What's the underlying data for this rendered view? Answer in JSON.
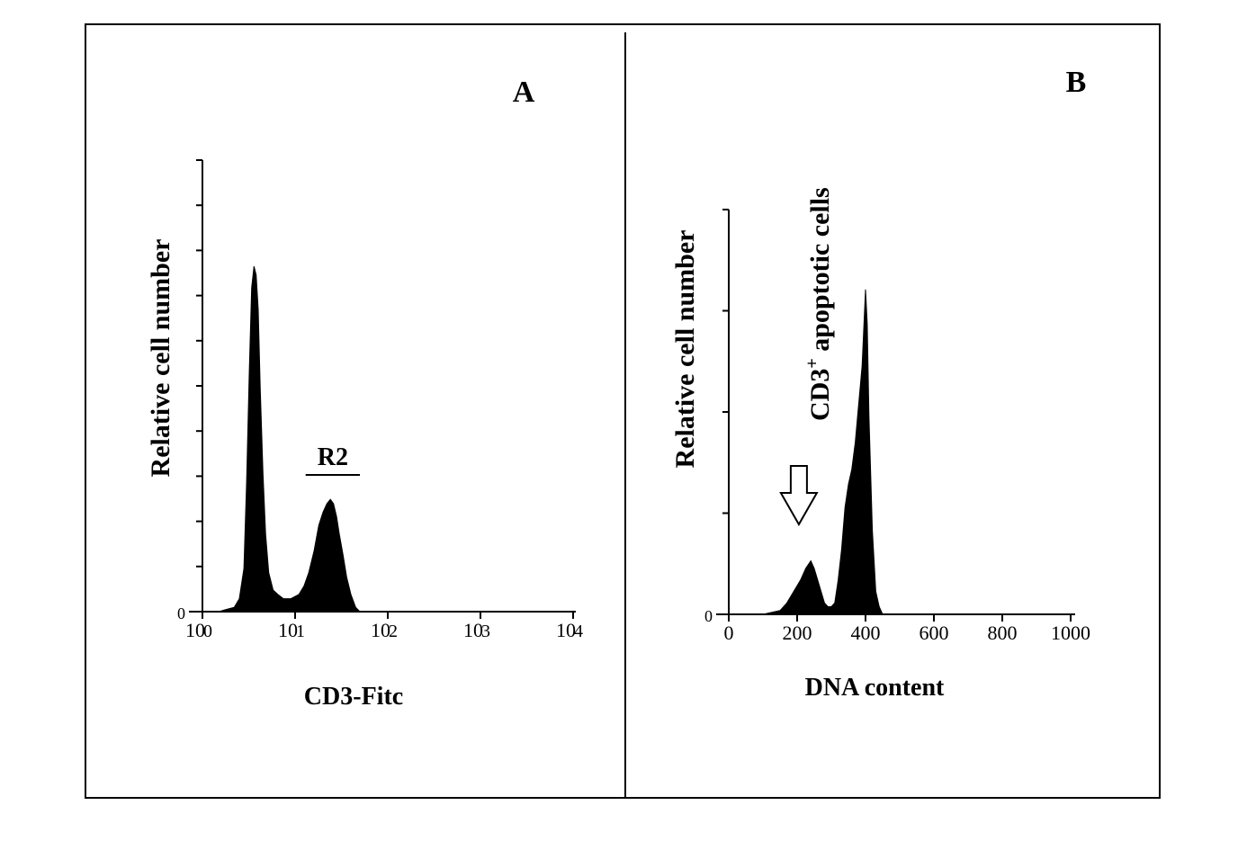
{
  "chart_data": [
    {
      "type": "area",
      "panel_label": "A",
      "xlabel": "CD3-Fitc",
      "ylabel": "Relative cell number",
      "x_scale": "log",
      "xlim": [
        1,
        10000
      ],
      "x_ticks": [
        {
          "value": 1,
          "label": "10",
          "exp": "0"
        },
        {
          "value": 10,
          "label": "10",
          "exp": "1"
        },
        {
          "value": 100,
          "label": "10",
          "exp": "2"
        },
        {
          "value": 1000,
          "label": "10",
          "exp": "3"
        },
        {
          "value": 10000,
          "label": "10",
          "exp": "4"
        }
      ],
      "y_zero_label": "0",
      "ylim": [
        0,
        100
      ],
      "gate": {
        "label": "R2",
        "x_range": [
          13,
          50
        ]
      },
      "series": [
        {
          "x": [
            1.5,
            1.8,
            2.2,
            2.5,
            2.8,
            3.0,
            3.2,
            3.4,
            3.6,
            3.8,
            4.0,
            4.2,
            4.5,
            4.8,
            5.2,
            5.8,
            6.5,
            7.5,
            9,
            11,
            12.5,
            14,
            16,
            18,
            20,
            22,
            24,
            26,
            28,
            30,
            33,
            36,
            40,
            45,
            50,
            60,
            100,
            1000,
            10000
          ],
          "y": [
            0,
            0.5,
            1,
            3,
            10,
            30,
            55,
            75,
            80,
            78,
            70,
            52,
            32,
            18,
            9,
            5,
            4,
            3,
            3,
            4,
            6,
            9,
            14,
            20,
            23,
            25,
            26,
            25,
            22,
            18,
            13,
            8,
            4,
            1,
            0,
            0,
            0,
            0,
            0
          ]
        }
      ]
    },
    {
      "type": "area",
      "panel_label": "B",
      "xlabel": "DNA content",
      "ylabel": "Relative cell number",
      "x_scale": "linear",
      "xlim": [
        0,
        1000
      ],
      "x_ticks": [
        {
          "value": 0,
          "label": "0"
        },
        {
          "value": 200,
          "label": "200"
        },
        {
          "value": 400,
          "label": "400"
        },
        {
          "value": 600,
          "label": "600"
        },
        {
          "value": 800,
          "label": "800"
        },
        {
          "value": 1000,
          "label": "1000"
        }
      ],
      "y_zero_label": "0",
      "ylim": [
        0,
        100
      ],
      "annotation": {
        "text": "CD3",
        "superscript": "+",
        "text_suffix": "apoptotic cells",
        "arrow_x": 205
      },
      "series": [
        {
          "x": [
            0,
            100,
            150,
            170,
            190,
            210,
            225,
            240,
            250,
            260,
            270,
            280,
            290,
            300,
            310,
            320,
            330,
            340,
            350,
            360,
            370,
            380,
            390,
            400,
            405,
            410,
            420,
            430,
            440,
            450,
            1000
          ],
          "y": [
            0,
            0,
            1,
            3,
            6,
            9,
            12,
            14,
            12,
            9,
            6,
            3,
            2,
            2,
            3,
            9,
            17,
            28,
            34,
            38,
            45,
            55,
            65,
            85,
            76,
            52,
            22,
            6,
            2,
            0,
            0
          ]
        }
      ]
    }
  ]
}
